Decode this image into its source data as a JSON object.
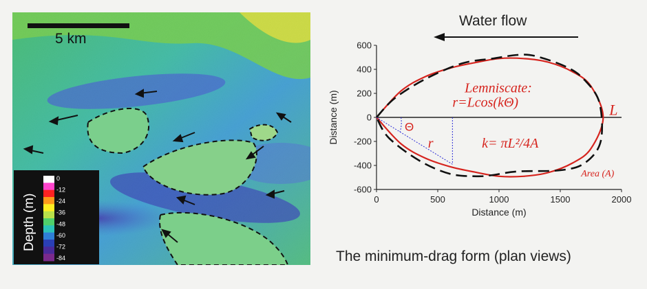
{
  "map": {
    "scale_label": "5 km",
    "legend_title": "Depth (m)",
    "legend_ticks": [
      "0",
      "-12",
      "-24",
      "-36",
      "-48",
      "-60",
      "-72",
      "-84"
    ],
    "legend_colors": [
      "#ffffff",
      "#ff44cc",
      "#ff2222",
      "#ff9a1a",
      "#ffee22",
      "#b8e04a",
      "#4fcf6a",
      "#2cc2b8",
      "#2f7fd6",
      "#2a3fb5",
      "#4a2a9a",
      "#7a2a8c"
    ]
  },
  "plot": {
    "flow_label": "Water flow",
    "xlabel": "Distance (m)",
    "ylabel": "Distance (m)",
    "x_ticks": [
      "0",
      "500",
      "1000",
      "1500",
      "2000"
    ],
    "y_ticks": [
      "600",
      "400",
      "200",
      "0",
      "-200",
      "-400",
      "-600"
    ],
    "annotations": {
      "lemniscate_title": "Lemniscate:",
      "lemniscate_eq": "r=Lcos(kΘ)",
      "L": "L",
      "theta": "Θ",
      "r": "r",
      "k_eq": "k= πL²/4A",
      "area": "Area (A)"
    }
  },
  "chart_data": {
    "type": "line",
    "xlabel": "Distance (m)",
    "ylabel": "Distance (m)",
    "xlim": [
      0,
      2000
    ],
    "ylim": [
      -600,
      600
    ],
    "grid": false,
    "series": [
      {
        "style": "solid-red",
        "x": [
          0,
          200,
          400,
          600,
          800,
          1000,
          1200,
          1400,
          1600,
          1750,
          1850,
          1750,
          1600,
          1400,
          1200,
          1000,
          800,
          600,
          400,
          200,
          0
        ],
        "y": [
          0,
          220,
          340,
          410,
          455,
          490,
          490,
          460,
          380,
          260,
          0,
          -260,
          -380,
          -460,
          -490,
          -490,
          -455,
          -410,
          -340,
          -220,
          0
        ]
      },
      {
        "style": "dashed-black",
        "x": [
          0,
          150,
          400,
          700,
          950,
          1150,
          1300,
          1550,
          1700,
          1820,
          1830,
          1700,
          1500,
          1150,
          950,
          820,
          600,
          350,
          100,
          0
        ],
        "y": [
          0,
          160,
          320,
          450,
          490,
          520,
          510,
          420,
          310,
          120,
          -200,
          -380,
          -440,
          -450,
          -480,
          -490,
          -470,
          -360,
          -170,
          0
        ]
      }
    ],
    "annotations": [
      "Lemniscate:",
      "r=Lcos(kΘ)",
      "L",
      "Θ",
      "r",
      "k= πL²/4A",
      "Area (A)"
    ],
    "title_arrow": "Water flow"
  },
  "caption": "The minimum-drag form (plan views)"
}
